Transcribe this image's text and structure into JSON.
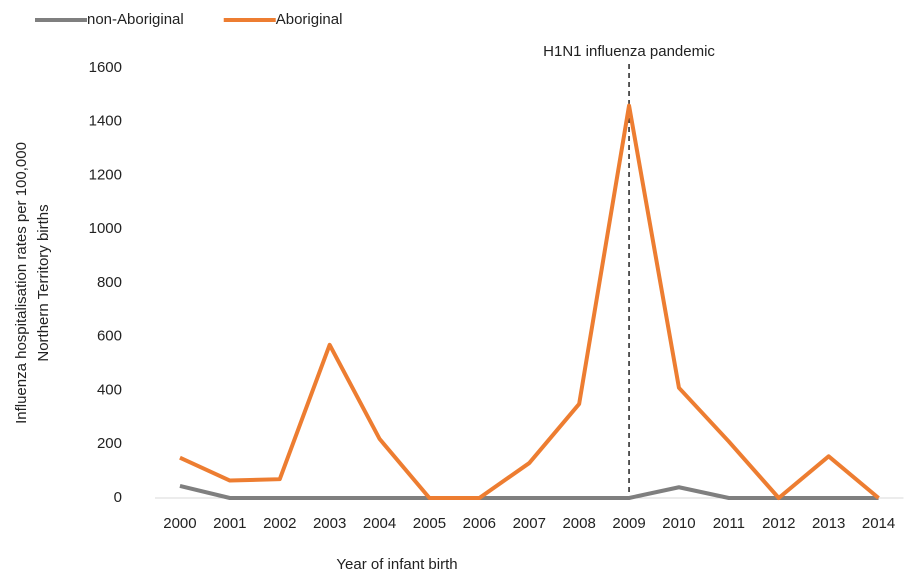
{
  "chart_data": {
    "type": "line",
    "categories": [
      "2000",
      "2001",
      "2002",
      "2003",
      "2004",
      "2005",
      "2006",
      "2007",
      "2008",
      "2009",
      "2010",
      "2011",
      "2012",
      "2013",
      "2014"
    ],
    "series": [
      {
        "name": "non-Aboriginal",
        "color": "#7f7f7f",
        "values": [
          45,
          0,
          0,
          0,
          0,
          0,
          0,
          0,
          0,
          0,
          40,
          0,
          0,
          0,
          0
        ]
      },
      {
        "name": "Aboriginal",
        "color": "#ed7d31",
        "values": [
          150,
          65,
          70,
          570,
          220,
          0,
          0,
          130,
          350,
          1460,
          410,
          210,
          0,
          155,
          0
        ]
      }
    ],
    "ylim": [
      0,
      1600
    ],
    "yticks": [
      0,
      200,
      400,
      600,
      800,
      1000,
      1200,
      1400,
      1600
    ],
    "xlabel": "Year of infant birth",
    "ylabel": [
      "Influenza hospitalisation rates per 100,000",
      "Northern Territory births"
    ],
    "annotation": {
      "text": "H1N1 influenza pandemic",
      "x": "2009"
    },
    "grid": false,
    "legend": "top-left"
  }
}
